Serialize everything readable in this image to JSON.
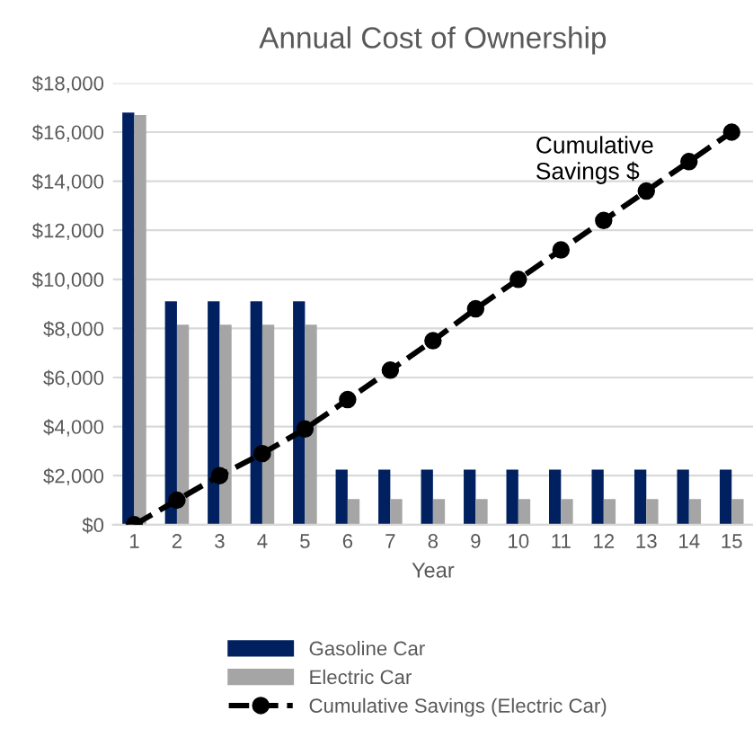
{
  "chart_data": {
    "type": "bar",
    "title": "Annual Cost of Ownership",
    "xlabel": "Year",
    "categories": [
      "1",
      "2",
      "3",
      "4",
      "5",
      "6",
      "7",
      "8",
      "9",
      "10",
      "11",
      "12",
      "13",
      "14",
      "15"
    ],
    "series": [
      {
        "name": "Gasoline Car",
        "color": "#002060",
        "values": [
          16800,
          9100,
          9100,
          9100,
          9100,
          2250,
          2250,
          2250,
          2250,
          2250,
          2250,
          2250,
          2250,
          2250,
          2250
        ]
      },
      {
        "name": "Electric Car",
        "color": "#a5a5a5",
        "values": [
          16700,
          8150,
          8150,
          8150,
          8150,
          1050,
          1050,
          1050,
          1050,
          1050,
          1050,
          1050,
          1050,
          1050,
          1050
        ]
      },
      {
        "name": "Cumulative Savings (Electric Car)",
        "type": "line",
        "color": "#000000",
        "marker": "circle",
        "line_style": "dashed",
        "values": [
          0,
          1000,
          2000,
          2900,
          3900,
          5100,
          6300,
          7500,
          8800,
          10000,
          11200,
          12400,
          13600,
          14800,
          16000
        ]
      }
    ],
    "ylim": [
      0,
      18000
    ],
    "yticks": [
      {
        "value": 0,
        "label": "$0"
      },
      {
        "value": 2000,
        "label": "$2,000"
      },
      {
        "value": 4000,
        "label": "$4,000"
      },
      {
        "value": 6000,
        "label": "$6,000"
      },
      {
        "value": 8000,
        "label": "$8,000"
      },
      {
        "value": 10000,
        "label": "$10,000"
      },
      {
        "value": 12000,
        "label": "$12,000"
      },
      {
        "value": 14000,
        "label": "$14,000"
      },
      {
        "value": 16000,
        "label": "$16,000"
      },
      {
        "value": 18000,
        "label": "$18,000"
      }
    ],
    "grid": "y",
    "legend": "bottom",
    "annotations": [
      "Cumulative\nSavings $"
    ]
  }
}
